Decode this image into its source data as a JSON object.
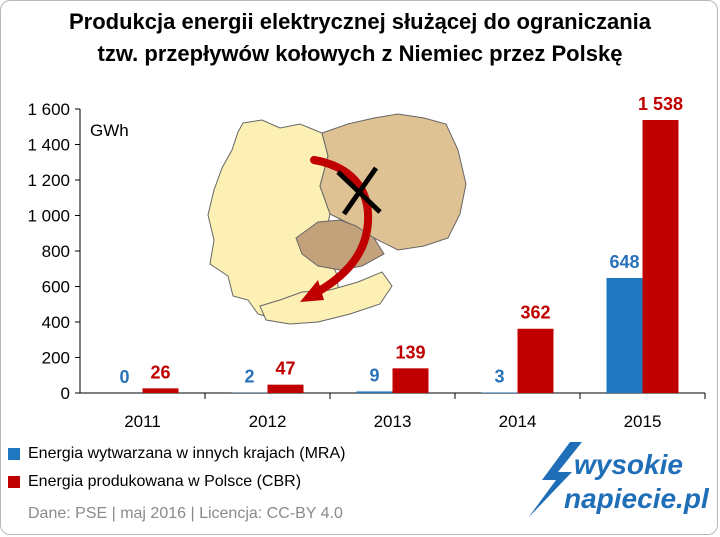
{
  "title_line1": "Produkcja energii elektrycznej służącej do ograniczania",
  "title_line2": "tzw. przepływów kołowych z Niemiec przez Polskę",
  "unit_label": "GWh",
  "colors": {
    "mra": "#1f77c0",
    "cbr": "#c00000",
    "mra_label": "#2a72b8",
    "cbr_label": "#c00000"
  },
  "chart_data": {
    "type": "bar",
    "categories": [
      "2011",
      "2012",
      "2013",
      "2014",
      "2015"
    ],
    "series": [
      {
        "name": "Energia wytwarzana w innych krajach (MRA)",
        "values": [
          0,
          2,
          9,
          3,
          648
        ],
        "labels": [
          "0",
          "2",
          "9",
          "3",
          "648"
        ]
      },
      {
        "name": "Energia produkowana w Polsce (CBR)",
        "values": [
          26,
          47,
          139,
          362,
          1538
        ],
        "labels": [
          "26",
          "47",
          "139",
          "362",
          "1 538"
        ]
      }
    ],
    "ylim": [
      0,
      1600
    ],
    "yticks": [
      0,
      200,
      400,
      600,
      800,
      1000,
      1200,
      1400,
      1600
    ],
    "ytick_labels": [
      "0",
      "200",
      "400",
      "600",
      "800",
      "1 000",
      "1 200",
      "1 400",
      "1 600"
    ],
    "legend": "bottom-left",
    "grid": false
  },
  "source_text": "Dane: PSE  |  maj 2016  |  Licencja: CC-BY 4.0",
  "logo": {
    "line1": "wysokie",
    "line2": "napiecie.pl"
  }
}
